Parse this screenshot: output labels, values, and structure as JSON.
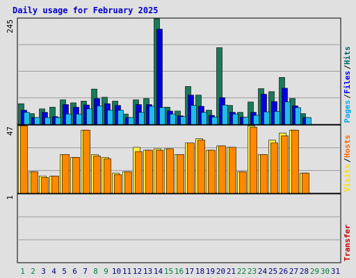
{
  "chart_data": {
    "type": "bar",
    "title": "Daily usage for February 2025",
    "days": [
      "1",
      "2",
      "3",
      "4",
      "5",
      "6",
      "7",
      "8",
      "9",
      "10",
      "11",
      "12",
      "13",
      "14",
      "15",
      "16",
      "17",
      "18",
      "19",
      "20",
      "21",
      "22",
      "23",
      "24",
      "25",
      "26",
      "27",
      "28",
      "29",
      "30",
      "31"
    ],
    "weekend_days": [
      1,
      2,
      8,
      9,
      15,
      16,
      22,
      23,
      29,
      30
    ],
    "top_panel": {
      "ymax": 245,
      "ymax_label": "245",
      "legend": [
        {
          "label": "Hits",
          "color": "#006666"
        },
        {
          "label": "Files",
          "color": "#0000ff"
        },
        {
          "label": "Pages",
          "color": "#00aaee"
        }
      ],
      "series": [
        {
          "name": "Hits",
          "color": "#1a7a5a",
          "values": [
            48,
            25,
            36,
            40,
            57,
            50,
            54,
            82,
            63,
            54,
            24,
            57,
            60,
            245,
            40,
            31,
            88,
            68,
            33,
            178,
            44,
            28,
            52,
            83,
            76,
            109,
            60,
            25,
            null,
            null,
            null
          ]
        },
        {
          "name": "Files",
          "color": "#0000dd",
          "values": [
            33,
            16,
            28,
            18,
            46,
            40,
            45,
            60,
            48,
            44,
            16,
            46,
            46,
            221,
            31,
            20,
            68,
            42,
            21,
            62,
            28,
            17,
            28,
            70,
            53,
            84,
            43,
            16,
            null,
            null,
            null
          ]
        },
        {
          "name": "Pages",
          "color": "#22bbee",
          "values": [
            28,
            16,
            16,
            16,
            24,
            24,
            36,
            43,
            33,
            33,
            16,
            28,
            42,
            39,
            24,
            18,
            44,
            28,
            17,
            45,
            24,
            17,
            21,
            29,
            30,
            52,
            39,
            16,
            null,
            null,
            null
          ]
        }
      ]
    },
    "middle_panel": {
      "ymax": 47,
      "ymax_label": "47",
      "legend": [
        {
          "label": "Hosts",
          "color": "#ff6600"
        },
        {
          "label": "Visits",
          "color": "#ffdd00"
        }
      ],
      "series": [
        {
          "name": "Visits",
          "color": "#ffee44",
          "values": [
            47,
            15,
            12,
            12,
            27,
            25,
            44,
            27,
            25,
            14,
            15,
            32,
            30,
            31,
            31,
            27,
            35,
            38,
            30,
            33,
            32,
            15,
            47,
            27,
            37,
            42,
            44,
            14,
            null,
            null,
            null
          ]
        },
        {
          "name": "Hosts",
          "color": "#ff8800",
          "values": [
            47,
            15,
            11,
            12,
            27,
            25,
            44,
            26,
            24,
            13,
            15,
            29,
            30,
            30,
            31,
            27,
            35,
            37,
            30,
            33,
            32,
            15,
            46,
            27,
            35,
            40,
            44,
            14,
            null,
            null,
            null
          ]
        }
      ]
    },
    "bottom_panel": {
      "ymax": 1,
      "ymax_label": "1",
      "legend": [
        {
          "label": "Transfer",
          "color": "#cc0000"
        }
      ],
      "series": [
        {
          "name": "Transfer",
          "color": "#cc0000",
          "values": [
            0,
            0,
            0,
            0,
            0,
            0,
            0,
            0,
            0,
            0,
            0,
            0,
            0,
            0,
            0,
            0,
            0,
            0,
            0,
            0,
            0,
            0,
            0,
            0,
            0,
            0,
            0,
            0,
            null,
            null,
            null
          ]
        }
      ]
    },
    "colors": {
      "background": "#e0e0e0",
      "plot_bg": "#e0e0e0",
      "title": "#0000cc",
      "weekday_label": "#000080",
      "weekend_label": "#008040",
      "grid": "#999999",
      "separator": "#000000"
    }
  }
}
